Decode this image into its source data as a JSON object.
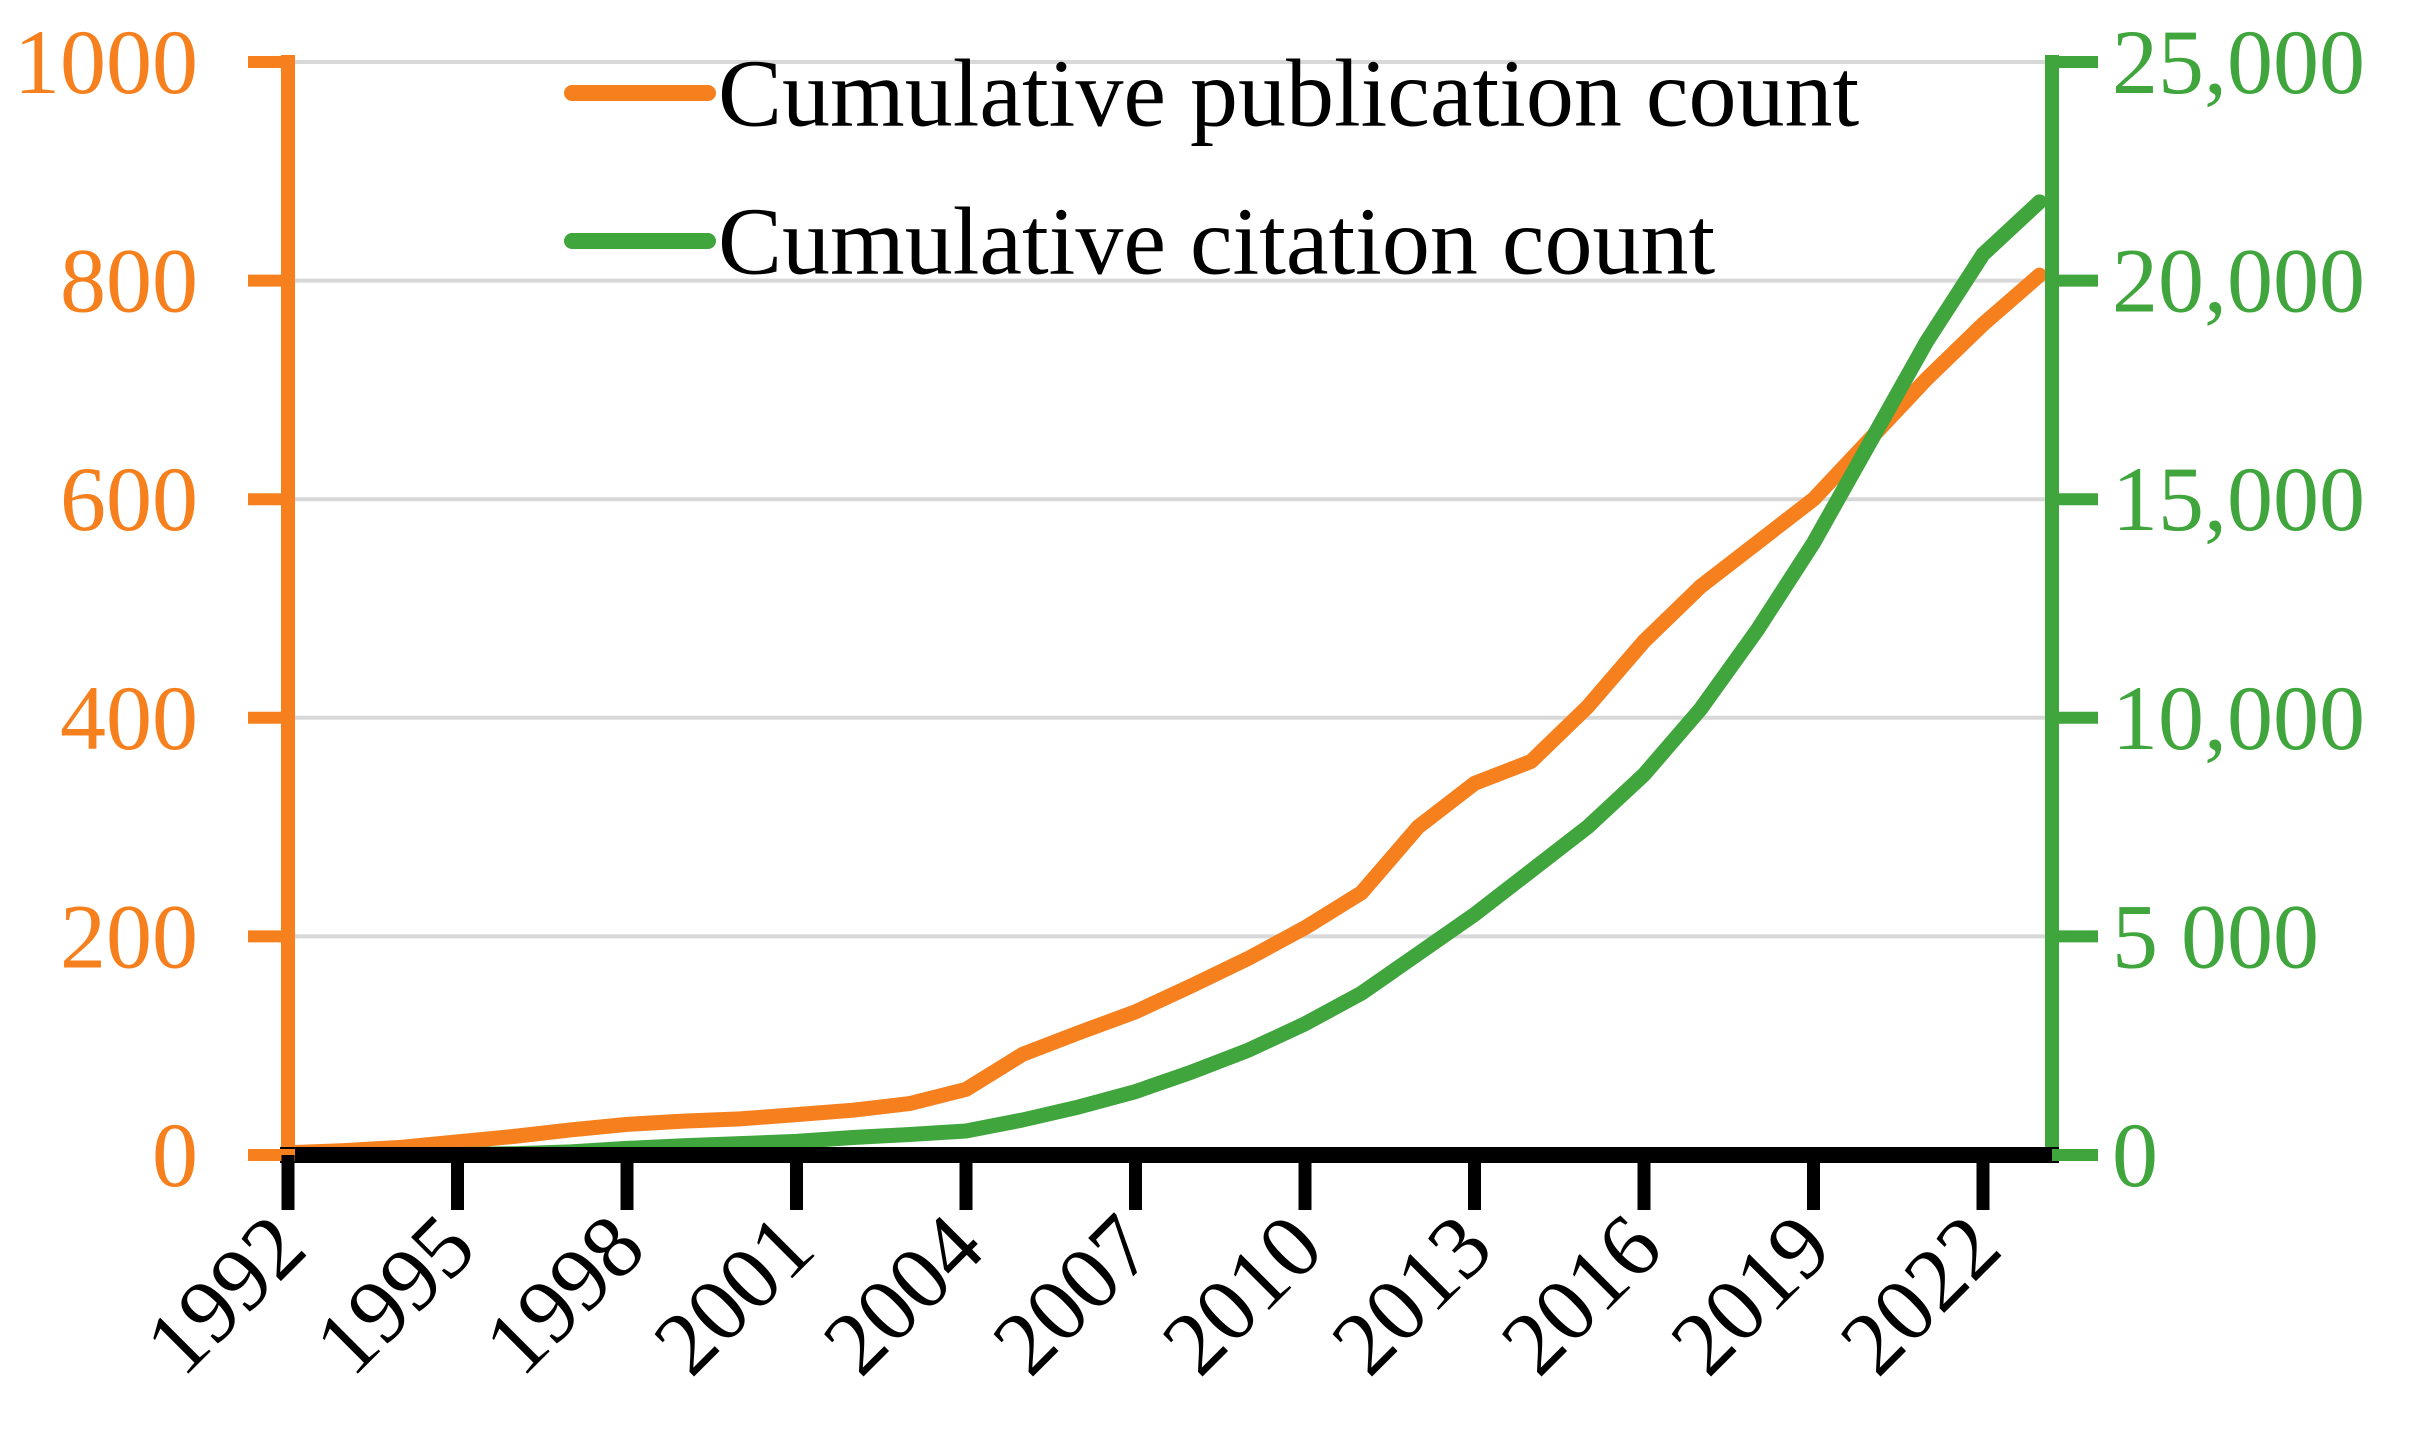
{
  "chart_data": {
    "type": "line",
    "title": "",
    "x": [
      1992,
      1993,
      1994,
      1995,
      1996,
      1997,
      1998,
      1999,
      2000,
      2001,
      2002,
      2003,
      2004,
      2005,
      2006,
      2007,
      2008,
      2009,
      2010,
      2011,
      2012,
      2013,
      2014,
      2015,
      2016,
      2017,
      2018,
      2019,
      2020,
      2021,
      2022,
      2023
    ],
    "series": [
      {
        "name": "Cumulative publication count",
        "axis": "left",
        "color": "#F6801E",
        "values": [
          2,
          4,
          7,
          12,
          17,
          23,
          28,
          31,
          33,
          37,
          41,
          47,
          60,
          92,
          112,
          131,
          155,
          180,
          208,
          240,
          300,
          340,
          360,
          410,
          470,
          520,
          560,
          600,
          655,
          710,
          760,
          805
        ]
      },
      {
        "name": "Cumulative citation count",
        "axis": "right",
        "color": "#3FA53C",
        "values": [
          0,
          2,
          5,
          12,
          30,
          70,
          150,
          210,
          260,
          310,
          400,
          470,
          550,
          800,
          1100,
          1450,
          1900,
          2400,
          3000,
          3700,
          4600,
          5500,
          6500,
          7500,
          8700,
          10200,
          12000,
          14000,
          16300,
          18600,
          20600,
          21800
        ]
      }
    ],
    "left_axis": {
      "range": [
        0,
        1000
      ],
      "tick_values": [
        0,
        200,
        400,
        600,
        800,
        1000
      ],
      "tick_labels": [
        "0",
        "200",
        "400",
        "600",
        "800",
        "1000"
      ],
      "color": "#F6801E"
    },
    "right_axis": {
      "range": [
        0,
        25000
      ],
      "tick_values": [
        0,
        5000,
        10000,
        15000,
        20000,
        25000
      ],
      "tick_labels": [
        "0",
        "5 000",
        "10,000",
        "15,000",
        "20,000",
        "25,000"
      ],
      "color": "#3FA53C"
    },
    "x_axis": {
      "color": "#000000",
      "tick_years": [
        1992,
        1995,
        1998,
        2001,
        2004,
        2007,
        2010,
        2013,
        2016,
        2019,
        2022
      ],
      "tick_labels": [
        "1992",
        "1995",
        "1998",
        "2001",
        "2004",
        "2007",
        "2010",
        "2013",
        "2016",
        "2019",
        "2022"
      ],
      "label_rotation_deg": -45
    },
    "grid": {
      "show": true,
      "color": "#D8D8D8"
    },
    "legend_position": "top-center"
  }
}
